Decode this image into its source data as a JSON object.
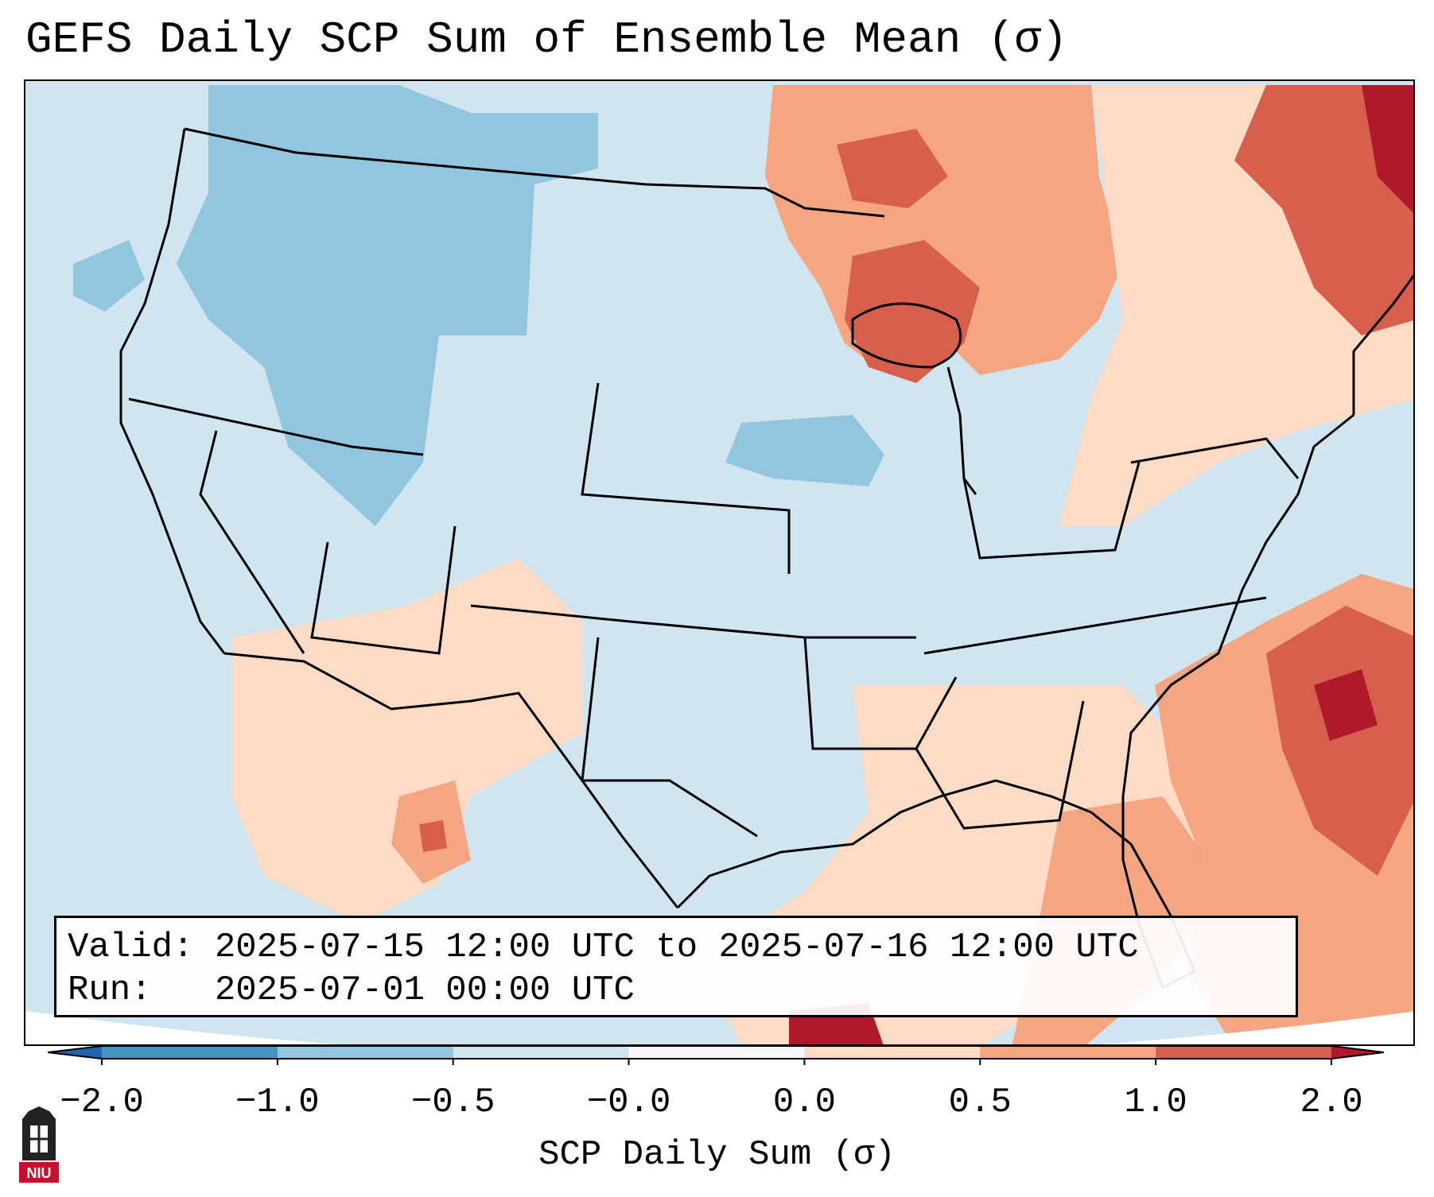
{
  "title": "GEFS Daily SCP Sum of Ensemble Mean (σ)",
  "info": {
    "valid_label": "Valid:",
    "valid_value": "2025-07-15 12:00 UTC to 2025-07-16 12:00 UTC",
    "run_label": "Run:",
    "run_value": "2025-07-01 00:00 UTC"
  },
  "colorbar": {
    "label": "SCP Daily Sum (σ)",
    "ticks": [
      "−2.0",
      "−1.0",
      "−0.5",
      "−0.0",
      "0.0",
      "0.5",
      "1.0",
      "2.0"
    ],
    "colors": [
      "#2166ac",
      "#4393c3",
      "#92c5de",
      "#d1e5f0",
      "#f7f7f7",
      "#fddbc7",
      "#f4a582",
      "#d6604d",
      "#b2182b"
    ]
  },
  "logo": {
    "text": "NIU",
    "colors": {
      "tower": "#222222",
      "badge": "#c8102e"
    }
  },
  "map": {
    "background_color": "#d1e5f0",
    "anomaly_regions": [
      {
        "name": "northwest-negative",
        "category": "-1.0 to -0.5",
        "color": "#92c5de"
      },
      {
        "name": "great-lakes-positive",
        "category": "0.5 to 1.0",
        "color": "#f4a582"
      },
      {
        "name": "northeast-positive",
        "category": "1.0 to 2.0",
        "color": "#d6604d"
      },
      {
        "name": "atlantic-positive",
        "category": "1.0 to 2.0",
        "color": "#d6604d"
      },
      {
        "name": "southwest-positive",
        "category": "0.0 to 0.5",
        "color": "#fddbc7"
      },
      {
        "name": "florida-positive",
        "category": "0.5 to 1.0",
        "color": "#f4a582"
      }
    ]
  }
}
